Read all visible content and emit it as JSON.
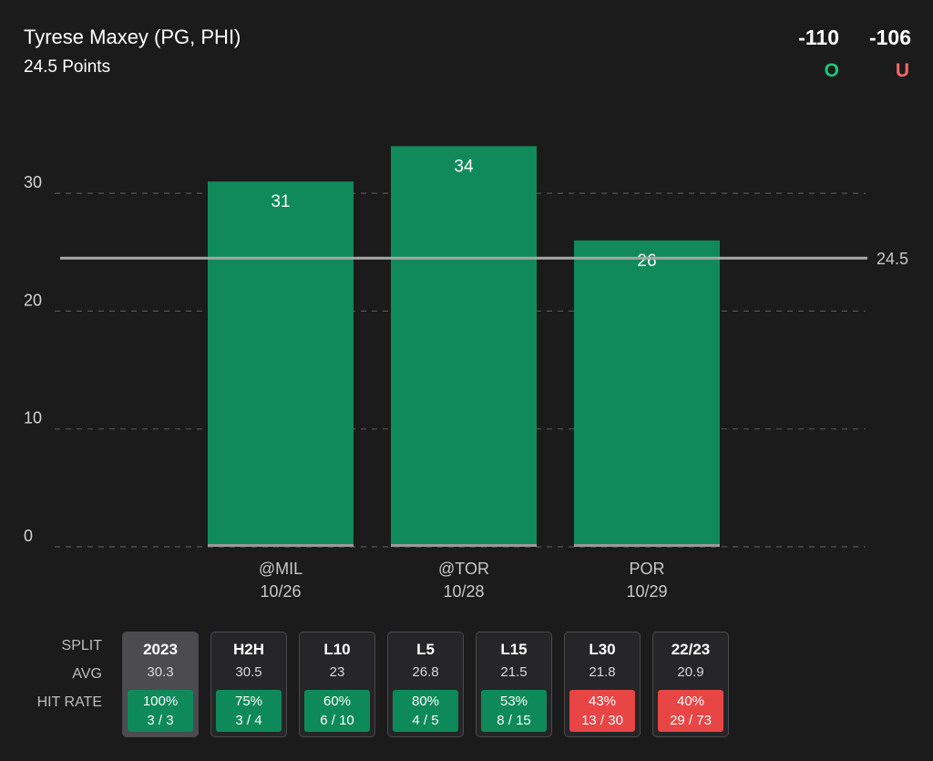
{
  "header": {
    "player": "Tyrese Maxey (PG, PHI)",
    "prop": "24.5 Points",
    "over_odds": "-110",
    "under_odds": "-106",
    "over_label": "O",
    "under_label": "U"
  },
  "colors": {
    "bar": "#108a5b",
    "over": "#1fc47a",
    "under": "#f26a6a",
    "hit_green": "#0e8a5a",
    "hit_red": "#e84545"
  },
  "chart_data": {
    "type": "bar",
    "categories": [
      "@MIL",
      "@TOR",
      "POR"
    ],
    "dates": [
      "10/26",
      "10/28",
      "10/29"
    ],
    "values": [
      31,
      34,
      26
    ],
    "ylim": [
      0,
      35
    ],
    "yticks": [
      0,
      10,
      20,
      30
    ],
    "reference_line": 24.5,
    "reference_label": "24.5",
    "grid": true
  },
  "splits": {
    "labels": {
      "split": "SPLIT",
      "avg": "AVG",
      "hit_rate": "HIT RATE"
    },
    "items": [
      {
        "name": "2023",
        "avg": "30.3",
        "pct": "100%",
        "record": "3 / 3",
        "status": "green",
        "selected": true
      },
      {
        "name": "H2H",
        "avg": "30.5",
        "pct": "75%",
        "record": "3 / 4",
        "status": "green",
        "selected": false
      },
      {
        "name": "L10",
        "avg": "23",
        "pct": "60%",
        "record": "6 / 10",
        "status": "green",
        "selected": false
      },
      {
        "name": "L5",
        "avg": "26.8",
        "pct": "80%",
        "record": "4 / 5",
        "status": "green",
        "selected": false
      },
      {
        "name": "L15",
        "avg": "21.5",
        "pct": "53%",
        "record": "8 / 15",
        "status": "green",
        "selected": false
      },
      {
        "name": "L30",
        "avg": "21.8",
        "pct": "43%",
        "record": "13 / 30",
        "status": "red",
        "selected": false
      },
      {
        "name": "22/23",
        "avg": "20.9",
        "pct": "40%",
        "record": "29 / 73",
        "status": "red",
        "selected": false
      }
    ]
  }
}
